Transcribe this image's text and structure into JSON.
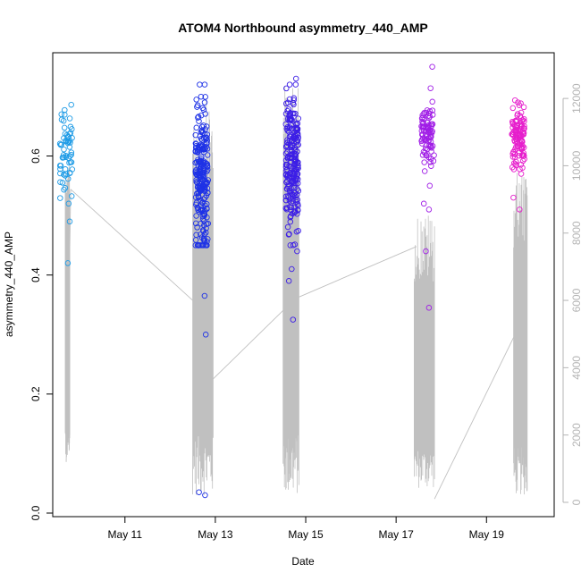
{
  "chart_data": {
    "type": "scatter",
    "title": "ATOM4 Northbound asymmetry_440_AMP",
    "xlabel": "Date",
    "ylabel": "asymmetry_440_AMP",
    "x_ticks": [
      "May 11",
      "May 13",
      "May 15",
      "May 17",
      "May 19"
    ],
    "x_tick_days": [
      11,
      13,
      15,
      17,
      19
    ],
    "xlim": [
      9.6,
      20.3
    ],
    "ylim": [
      0.0,
      0.76
    ],
    "y_ticks": [
      0.0,
      0.2,
      0.4,
      0.6
    ],
    "y_tick_labels": [
      "0.0",
      "0.2",
      "0.4",
      "0.6"
    ],
    "y2lim": [
      0,
      12800
    ],
    "y2_ticks": [
      0,
      2000,
      4000,
      6000,
      8000,
      10000,
      12000
    ],
    "y2_tick_labels": [
      "0",
      "2000",
      "4000",
      "6000",
      "8000",
      "10000",
      "12000"
    ],
    "grid": false,
    "clusters": [
      {
        "day": 9.7,
        "color": "#1e9be6",
        "n": 60,
        "center": 0.61,
        "spread": 0.035,
        "outliers": [
          0.42,
          0.49,
          0.52,
          0.67
        ]
      },
      {
        "day": 12.7,
        "color": "#1e32e6",
        "n": 230,
        "center": 0.56,
        "spread": 0.06,
        "outliers": [
          0.03,
          0.035,
          0.3,
          0.365,
          0.48,
          0.69
        ]
      },
      {
        "day": 14.7,
        "color": "#3c1ee6",
        "n": 220,
        "center": 0.59,
        "spread": 0.055,
        "outliers": [
          0.325,
          0.39,
          0.41,
          0.44,
          0.73
        ]
      },
      {
        "day": 17.7,
        "color": "#a01ee6",
        "n": 90,
        "center": 0.635,
        "spread": 0.025,
        "outliers": [
          0.345,
          0.44,
          0.51,
          0.52,
          0.55,
          0.75
        ]
      },
      {
        "day": 19.7,
        "color": "#e61ecc",
        "n": 110,
        "center": 0.63,
        "spread": 0.025,
        "outliers": [
          0.51,
          0.53,
          0.57,
          0.69
        ]
      }
    ],
    "depth_line": {
      "color": "#c0c0c0",
      "segments": [
        {
          "from": [
            9.7,
            1200
          ],
          "to": [
            9.8,
            9300
          ]
        },
        {
          "from": [
            9.8,
            9300
          ],
          "to": [
            12.5,
            6000
          ]
        },
        {
          "from": [
            12.9,
            3600
          ],
          "to": [
            14.5,
            5700
          ]
        },
        {
          "from": [
            14.85,
            6100
          ],
          "to": [
            17.45,
            7600
          ]
        },
        {
          "from": [
            17.85,
            100
          ],
          "to": [
            19.6,
            4900
          ]
        }
      ],
      "bursts": [
        {
          "start": 9.68,
          "end": 9.78,
          "lo": 1200,
          "hi": 10000
        },
        {
          "start": 12.5,
          "end": 12.95,
          "lo": 200,
          "hi": 12000
        },
        {
          "start": 14.5,
          "end": 14.85,
          "lo": 200,
          "hi": 12400
        },
        {
          "start": 17.4,
          "end": 17.85,
          "lo": 400,
          "hi": 8600
        },
        {
          "start": 19.6,
          "end": 19.9,
          "lo": 200,
          "hi": 9800
        }
      ]
    }
  }
}
